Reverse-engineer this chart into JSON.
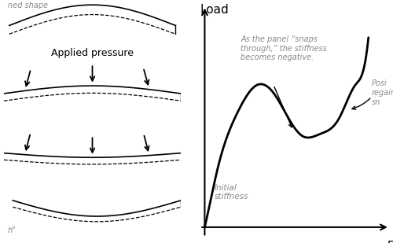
{
  "bg_color": "#ffffff",
  "left_panel": {
    "label_top": "ned shape",
    "label_pressure": "Applied pressure",
    "label_bottom": "h\""
  },
  "right_panel": {
    "xlabel": "D",
    "ylabel": "Load",
    "annotation1": "As the panel “snaps\nthrough,” the stiffness\nbecomes negative.",
    "annotation2": "Posi\nregaine\nsn",
    "annotation3": "Initial\nstiffness",
    "curve_color": "#000000",
    "axis_color": "#000000"
  }
}
